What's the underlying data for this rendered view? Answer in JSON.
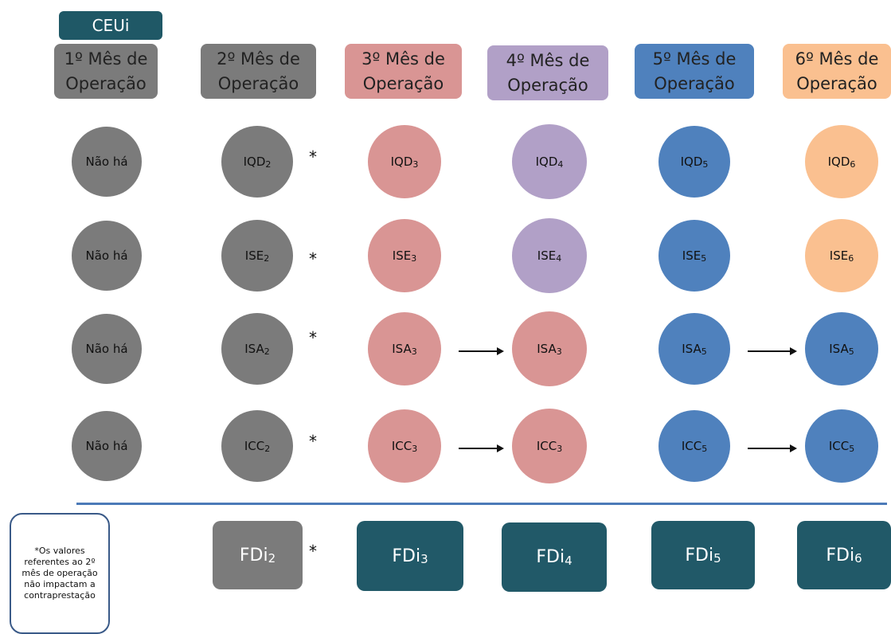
{
  "tag": "CEUi",
  "headers": [
    {
      "text": "1º Mês de\nOperação",
      "bg": "#7b7b7b",
      "text_color": "dark"
    },
    {
      "text": "2º Mês de\nOperação",
      "bg": "#7b7b7b",
      "text_color": "dark"
    },
    {
      "text": "3º Mês de\nOperação",
      "bg": "#d99594",
      "text_color": "dark"
    },
    {
      "text": "4º Mês de\nOperação",
      "bg": "#b1a0c7",
      "text_color": "dark"
    },
    {
      "text": "5º Mês de\nOperação",
      "bg": "#4f81bd",
      "text_color": "dark"
    },
    {
      "text": "6º Mês de\nOperação",
      "bg": "#fac090",
      "text_color": "dark"
    }
  ],
  "rows": [
    [
      "Não há",
      {
        "base": "IQD",
        "sub": "2"
      },
      {
        "base": "IQD",
        "sub": "3"
      },
      {
        "base": "IQD",
        "sub": "4"
      },
      {
        "base": "IQD",
        "sub": "5"
      },
      {
        "base": "IQD",
        "sub": "6"
      }
    ],
    [
      "Não há",
      {
        "base": "ISE",
        "sub": "2"
      },
      {
        "base": "ISE",
        "sub": "3"
      },
      {
        "base": "ISE",
        "sub": "4"
      },
      {
        "base": "ISE",
        "sub": "5"
      },
      {
        "base": "ISE",
        "sub": "6"
      }
    ],
    [
      "Não há",
      {
        "base": "ISA",
        "sub": "2"
      },
      {
        "base": "ISA",
        "sub": "3"
      },
      {
        "base": "ISA",
        "sub": "3"
      },
      {
        "base": "ISA",
        "sub": "5"
      },
      {
        "base": "ISA",
        "sub": "5"
      }
    ],
    [
      "Não há",
      {
        "base": "ICC",
        "sub": "2"
      },
      {
        "base": "ICC",
        "sub": "3"
      },
      {
        "base": "ICC",
        "sub": "3"
      },
      {
        "base": "ICC",
        "sub": "5"
      },
      {
        "base": "ICC",
        "sub": "5"
      }
    ]
  ],
  "circle_colors": [
    [
      "#7b7b7b",
      "#7b7b7b",
      "#d99594",
      "#b1a0c7",
      "#4f81bd",
      "#fac090"
    ],
    [
      "#7b7b7b",
      "#7b7b7b",
      "#d99594",
      "#b1a0c7",
      "#4f81bd",
      "#fac090"
    ],
    [
      "#7b7b7b",
      "#7b7b7b",
      "#d99594",
      "#d99594",
      "#4f81bd",
      "#4f81bd"
    ],
    [
      "#7b7b7b",
      "#7b7b7b",
      "#d99594",
      "#d99594",
      "#4f81bd",
      "#4f81bd"
    ]
  ],
  "star": "*",
  "arrows": [
    {
      "row": 2,
      "from_col": 2,
      "to_col": 3
    },
    {
      "row": 2,
      "from_col": 4,
      "to_col": 5
    },
    {
      "row": 3,
      "from_col": 2,
      "to_col": 3
    },
    {
      "row": 3,
      "from_col": 4,
      "to_col": 5
    }
  ],
  "note": "*Os valores referentes ao 2º mês de operação não impactam a contraprestação",
  "fdi": [
    {
      "base": "FDi",
      "sub": "2",
      "bg": "#7b7b7b"
    },
    {
      "base": "FDi",
      "sub": "3",
      "bg": "#215968"
    },
    {
      "base": "FDi",
      "sub": "4",
      "bg": "#215968"
    },
    {
      "base": "FDi",
      "sub": "5",
      "bg": "#215968"
    },
    {
      "base": "FDi",
      "sub": "6",
      "bg": "#215968"
    }
  ],
  "colors": {
    "divider": "#4c7ab8",
    "note_border": "#3a5a88"
  }
}
